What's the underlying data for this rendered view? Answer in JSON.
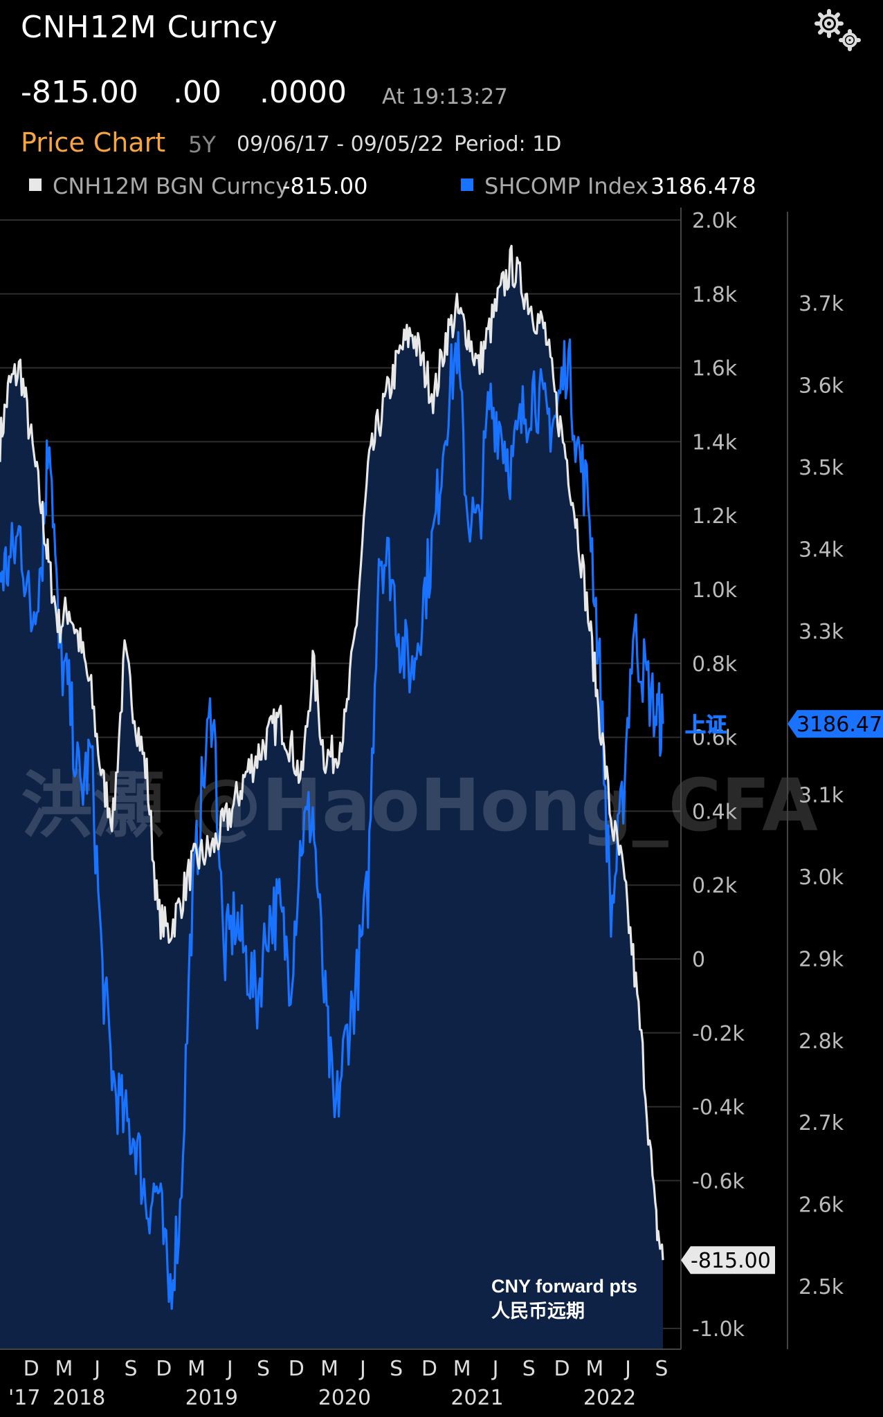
{
  "header": {
    "title": "CNH12M Curncy",
    "last": "-815.00",
    "change": ".00",
    "pct_change": ".0000",
    "time": "At 19:13:27"
  },
  "toolbar": {
    "chart_label": "Price Chart",
    "range": "5Y",
    "dates": "09/06/17 - 09/05/22",
    "period": "Period: 1D"
  },
  "icons": {
    "settings": "gear-icon"
  },
  "legend": [
    {
      "name": "CNH12M BGN Curncy",
      "value": "-815.00",
      "color": "#e8e8e8"
    },
    {
      "name": "SHCOMP Index",
      "value": "3186.478",
      "color": "#1a73ff"
    }
  ],
  "colors": {
    "background": "#000000",
    "area_fill": "#0d2244",
    "cnh_line": "#e8e8e8",
    "shcomp_line": "#1a73ff",
    "accent": "#f7a543"
  },
  "watermark": "洪灝 @HaoHong_CFA",
  "chart_data": {
    "type": "line",
    "x": [
      "2017-09-06",
      "2017-10-01",
      "2017-11-01",
      "2017-12-01",
      "2018-01-01",
      "2018-01-20",
      "2018-02-15",
      "2018-03-15",
      "2018-04-15",
      "2018-05-15",
      "2018-06-15",
      "2018-07-15",
      "2018-08-15",
      "2018-09-15",
      "2018-10-15",
      "2018-11-15",
      "2018-12-15",
      "2019-01-15",
      "2019-02-15",
      "2019-03-15",
      "2019-04-15",
      "2019-05-15",
      "2019-06-15",
      "2019-07-15",
      "2019-08-15",
      "2019-09-15",
      "2019-10-15",
      "2019-11-15",
      "2019-12-15",
      "2020-01-15",
      "2020-02-15",
      "2020-03-15",
      "2020-04-15",
      "2020-05-15",
      "2020-06-15",
      "2020-07-15",
      "2020-08-15",
      "2020-09-15",
      "2020-10-15",
      "2020-11-15",
      "2020-12-15",
      "2021-01-15",
      "2021-02-15",
      "2021-03-15",
      "2021-04-15",
      "2021-05-15",
      "2021-06-15",
      "2021-07-15",
      "2021-08-15",
      "2021-09-15",
      "2021-10-15",
      "2021-11-15",
      "2021-12-15",
      "2022-01-15",
      "2022-02-15",
      "2022-03-15",
      "2022-04-15",
      "2022-05-15",
      "2022-06-15",
      "2022-07-15",
      "2022-08-15",
      "2022-09-05"
    ],
    "series": [
      {
        "name": "CNH12M BGN Curncy",
        "axis": "left",
        "values": [
          1400,
          1550,
          1600,
          1400,
          1200,
          1050,
          900,
          950,
          850,
          720,
          480,
          380,
          820,
          650,
          500,
          120,
          70,
          150,
          250,
          280,
          300,
          360,
          420,
          500,
          550,
          600,
          650,
          580,
          480,
          800,
          550,
          550,
          640,
          920,
          1320,
          1450,
          1550,
          1650,
          1700,
          1600,
          1520,
          1680,
          1750,
          1700,
          1600,
          1700,
          1800,
          1880,
          1820,
          1750,
          1700,
          1500,
          1350,
          1150,
          900,
          650,
          380,
          250,
          0,
          -300,
          -700,
          -815
        ]
      },
      {
        "name": "SHCOMP Index",
        "axis": "right",
        "values": [
          3370,
          3380,
          3420,
          3310,
          3400,
          3560,
          3280,
          3220,
          3100,
          3150,
          2880,
          2750,
          2700,
          2680,
          2600,
          2620,
          2490,
          2590,
          2950,
          3100,
          3220,
          2900,
          2950,
          2900,
          2850,
          2950,
          2960,
          2880,
          3050,
          3080,
          2860,
          2700,
          2800,
          2870,
          2980,
          3400,
          3380,
          3280,
          3250,
          3340,
          3420,
          3560,
          3650,
          3450,
          3420,
          3580,
          3550,
          3500,
          3560,
          3600,
          3560,
          3560,
          3640,
          3520,
          3450,
          3250,
          2950,
          3080,
          3300,
          3250,
          3200,
          3186.478
        ]
      }
    ],
    "left_axis": {
      "ticks": [
        "2.0k",
        "1.8k",
        "1.6k",
        "1.4k",
        "1.2k",
        "1.0k",
        "0.8k",
        "0.6k",
        "0.4k",
        "0.2k",
        "0",
        "-0.2k",
        "-0.4k",
        "-0.6k",
        "-1.0k"
      ],
      "range": [
        -1000,
        2000
      ]
    },
    "right_axis": {
      "ticks": [
        "3.7k",
        "3.6k",
        "3.5k",
        "3.4k",
        "3.3k",
        "3.1k",
        "3.0k",
        "2.9k",
        "2.8k",
        "2.7k",
        "2.6k",
        "2.5k"
      ],
      "range": [
        2440,
        3810
      ]
    },
    "month_ticks": [
      "D",
      "M",
      "J",
      "S",
      "D",
      "M",
      "J",
      "S",
      "D",
      "M",
      "J",
      "S",
      "D",
      "M",
      "J",
      "S",
      "D",
      "M",
      "J",
      "S"
    ],
    "year_ticks": [
      "'17",
      "2018",
      "2019",
      "2020",
      "2021",
      "2022"
    ],
    "last_labels": {
      "cnh": "-815.00",
      "shcomp": "3186.478",
      "shcomp_cn": "上证"
    },
    "annotation": [
      "CNY forward pts",
      "人民币远期"
    ],
    "grid": true
  }
}
